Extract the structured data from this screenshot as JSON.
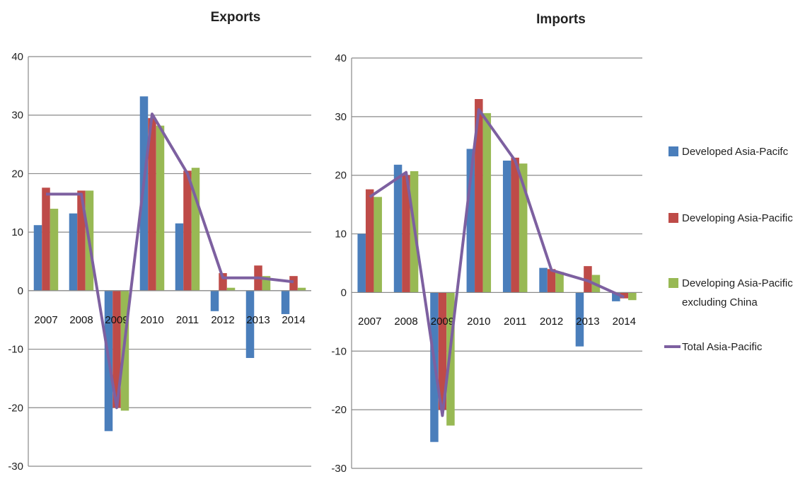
{
  "legend": [
    {
      "label": "Developed Asia-Pacifc",
      "type": "bar",
      "color": "#4A7EBB"
    },
    {
      "label": "Developing Asia-Pacific",
      "type": "bar",
      "color": "#BE4B48"
    },
    {
      "label": "Developing Asia-Pacific excluding China",
      "lines": [
        "Developing Asia-Pacific",
        "excluding China"
      ],
      "type": "bar",
      "color": "#98B954"
    },
    {
      "label": "Total Asia-Pacific",
      "type": "line",
      "color": "#7D60A0"
    }
  ],
  "chart_data": [
    {
      "type": "bar",
      "title": "Exports",
      "categories": [
        "2007",
        "2008",
        "2009",
        "2010",
        "2011",
        "2012",
        "2013",
        "2014"
      ],
      "ylim": [
        -30,
        40
      ],
      "yticks": [
        "40",
        "30",
        "20",
        "10",
        "0",
        "-10",
        "-20",
        "-30"
      ],
      "grid": true,
      "legend_position": "right",
      "series": [
        {
          "name": "Developed Asia-Pacifc",
          "type": "bar",
          "color": "#4A7EBB",
          "values": [
            11.2,
            13.2,
            -24,
            33.2,
            11.5,
            -3.5,
            -11.5,
            -4
          ]
        },
        {
          "name": "Developing Asia-Pacific",
          "type": "bar",
          "color": "#BE4B48",
          "values": [
            17.6,
            17.1,
            -20,
            29.5,
            20.5,
            3,
            4.3,
            2.5
          ]
        },
        {
          "name": "Developing Asia-Pacific excluding China",
          "type": "bar",
          "color": "#98B954",
          "values": [
            14,
            17.1,
            -20.5,
            28.2,
            21,
            0.5,
            2.5,
            0.5
          ]
        },
        {
          "name": "Total Asia-Pacific",
          "type": "line",
          "color": "#7D60A0",
          "values": [
            16.5,
            16.5,
            -20,
            30.2,
            20,
            2.2,
            2.2,
            1.5
          ]
        }
      ]
    },
    {
      "type": "bar",
      "title": "Imports",
      "categories": [
        "2007",
        "2008",
        "2009",
        "2010",
        "2011",
        "2012",
        "2013",
        "2014"
      ],
      "ylim": [
        -30,
        40
      ],
      "yticks": [
        "40",
        "30",
        "20",
        "10",
        "0",
        "-10",
        "-20",
        "-30"
      ],
      "grid": true,
      "legend_position": "right",
      "series": [
        {
          "name": "Developed Asia-Pacifc",
          "type": "bar",
          "color": "#4A7EBB",
          "values": [
            10,
            21.8,
            -25.5,
            24.5,
            22.5,
            4.2,
            -9.2,
            -1.5
          ]
        },
        {
          "name": "Developing Asia-Pacific",
          "type": "bar",
          "color": "#BE4B48",
          "values": [
            17.6,
            20,
            -20,
            33,
            23,
            4,
            4.5,
            -1
          ]
        },
        {
          "name": "Developing Asia-Pacific excluding China",
          "type": "bar",
          "color": "#98B954",
          "values": [
            16.3,
            20.7,
            -22.7,
            30.6,
            22,
            3.5,
            3,
            -1.3
          ]
        },
        {
          "name": "Total Asia-Pacific",
          "type": "line",
          "color": "#7D60A0",
          "values": [
            16.3,
            20.5,
            -21,
            31.2,
            22.5,
            3.8,
            2,
            -0.8
          ]
        }
      ]
    }
  ]
}
